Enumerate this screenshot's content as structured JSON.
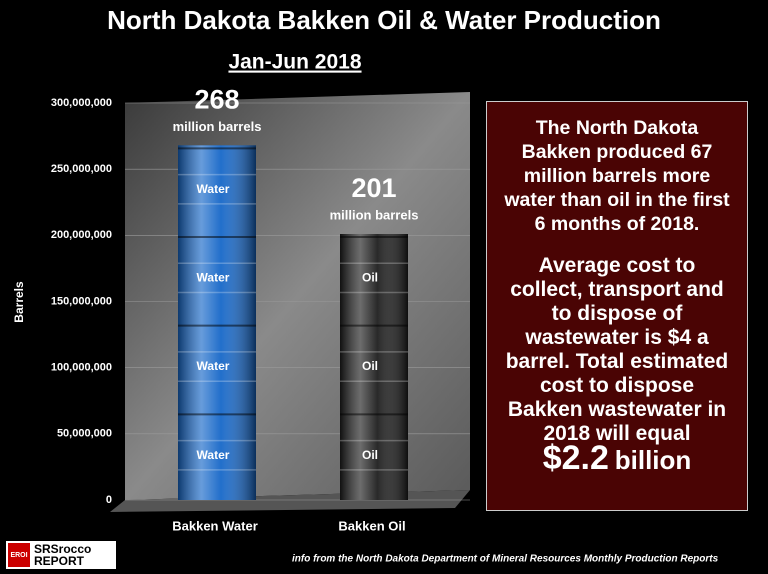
{
  "chart_data": {
    "type": "bar",
    "title": "North Dakota Bakken Oil & Water Production",
    "subtitle": "Jan-Jun 2018",
    "y_label": "Barrels",
    "categories": [
      "Bakken Water",
      "Bakken Oil"
    ],
    "values": [
      268000000,
      201000000
    ],
    "value_labels": [
      "268",
      "201"
    ],
    "value_label_unit": "million barrels",
    "barrel_labels": [
      "Water",
      "Oil"
    ],
    "colors": [
      "#1667c8",
      "#1e1e1e"
    ],
    "ylim": [
      0,
      300000000
    ],
    "yticks": [
      0,
      {
        "value": 50000000,
        "label": "50,000,000"
      },
      {
        "value": 100000000,
        "label": "100,000,000"
      },
      {
        "value": 150000000,
        "label": "150,000,000"
      },
      {
        "value": 200000000,
        "label": "200,000,000"
      },
      {
        "value": 250000000,
        "label": "250,000,000"
      },
      {
        "value": 300000000,
        "label": "300,000,000"
      }
    ],
    "grid": true,
    "annotation": {
      "paragraphs": [
        "The North Dakota Bakken produced 67 million barrels more water than oil in the first 6 months of 2018.",
        "Average cost to collect, transport and to dispose of wastewater is $4 a barrel.  Total estimated cost to dispose Bakken wastewater in 2018 will equal"
      ],
      "total": "$2.2",
      "total_unit": "billion"
    },
    "source": "info from the North Dakota Department of Mineral Resources Monthly Production Reports",
    "logo": {
      "badge": "EROI",
      "name": "SRSrocco",
      "sub": "REPORT"
    }
  }
}
